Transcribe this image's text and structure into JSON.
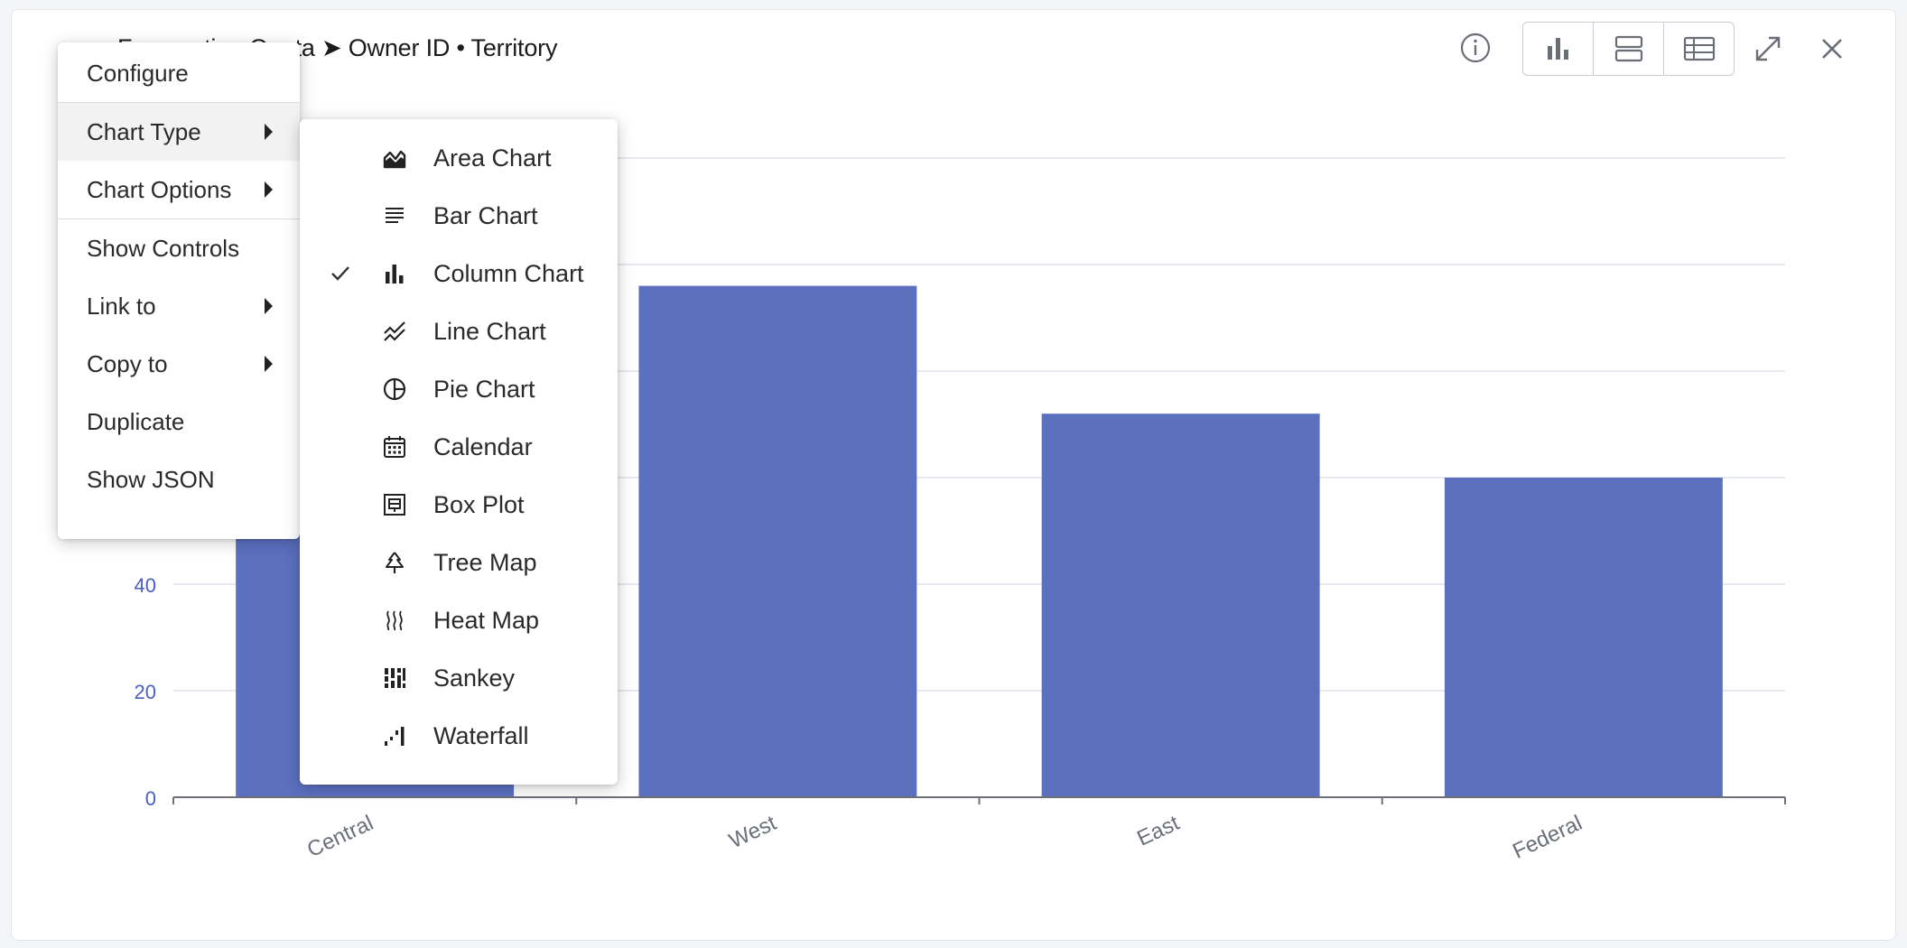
{
  "header": {
    "title": "Forecasting Quota ➤ Owner ID • Territory"
  },
  "toolbar": {
    "info_icon": "info-icon",
    "view_buttons": [
      "chart-view-icon",
      "split-view-icon",
      "table-view-icon"
    ],
    "expand_icon": "expand-icon",
    "close_icon": "close-icon"
  },
  "context_menu": {
    "items": [
      {
        "label": "Configure",
        "has_submenu": false
      },
      {
        "label": "Chart Type",
        "has_submenu": true,
        "active": true
      },
      {
        "label": "Chart Options",
        "has_submenu": true
      },
      {
        "label": "Show Controls",
        "has_submenu": false
      },
      {
        "label": "Link to",
        "has_submenu": true
      },
      {
        "label": "Copy to",
        "has_submenu": true
      },
      {
        "label": "Duplicate",
        "has_submenu": false
      },
      {
        "label": "Show JSON",
        "has_submenu": false
      }
    ]
  },
  "chart_type_menu": {
    "items": [
      {
        "label": "Area Chart",
        "icon": "area-chart-icon",
        "checked": false
      },
      {
        "label": "Bar Chart",
        "icon": "bar-chart-icon",
        "checked": false
      },
      {
        "label": "Column Chart",
        "icon": "column-chart-icon",
        "checked": true
      },
      {
        "label": "Line Chart",
        "icon": "line-chart-icon",
        "checked": false
      },
      {
        "label": "Pie Chart",
        "icon": "pie-chart-icon",
        "checked": false
      },
      {
        "label": "Calendar",
        "icon": "calendar-icon",
        "checked": false
      },
      {
        "label": "Box Plot",
        "icon": "box-plot-icon",
        "checked": false
      },
      {
        "label": "Tree Map",
        "icon": "tree-map-icon",
        "checked": false
      },
      {
        "label": "Heat Map",
        "icon": "heat-map-icon",
        "checked": false
      },
      {
        "label": "Sankey",
        "icon": "sankey-icon",
        "checked": false
      },
      {
        "label": "Waterfall",
        "icon": "waterfall-icon",
        "checked": false
      }
    ]
  },
  "colors": {
    "bar": "#5c70c0",
    "axis_text": "#4a5fbf",
    "category_text": "#6b6f7a"
  },
  "chart_data": {
    "type": "bar",
    "categories": [
      "Central",
      "West",
      "East",
      "Federal"
    ],
    "values": [
      120,
      96,
      72,
      60
    ],
    "yticks": [
      0,
      20,
      40
    ],
    "ylim": [
      0,
      120
    ],
    "grid": true,
    "legend": "none"
  }
}
